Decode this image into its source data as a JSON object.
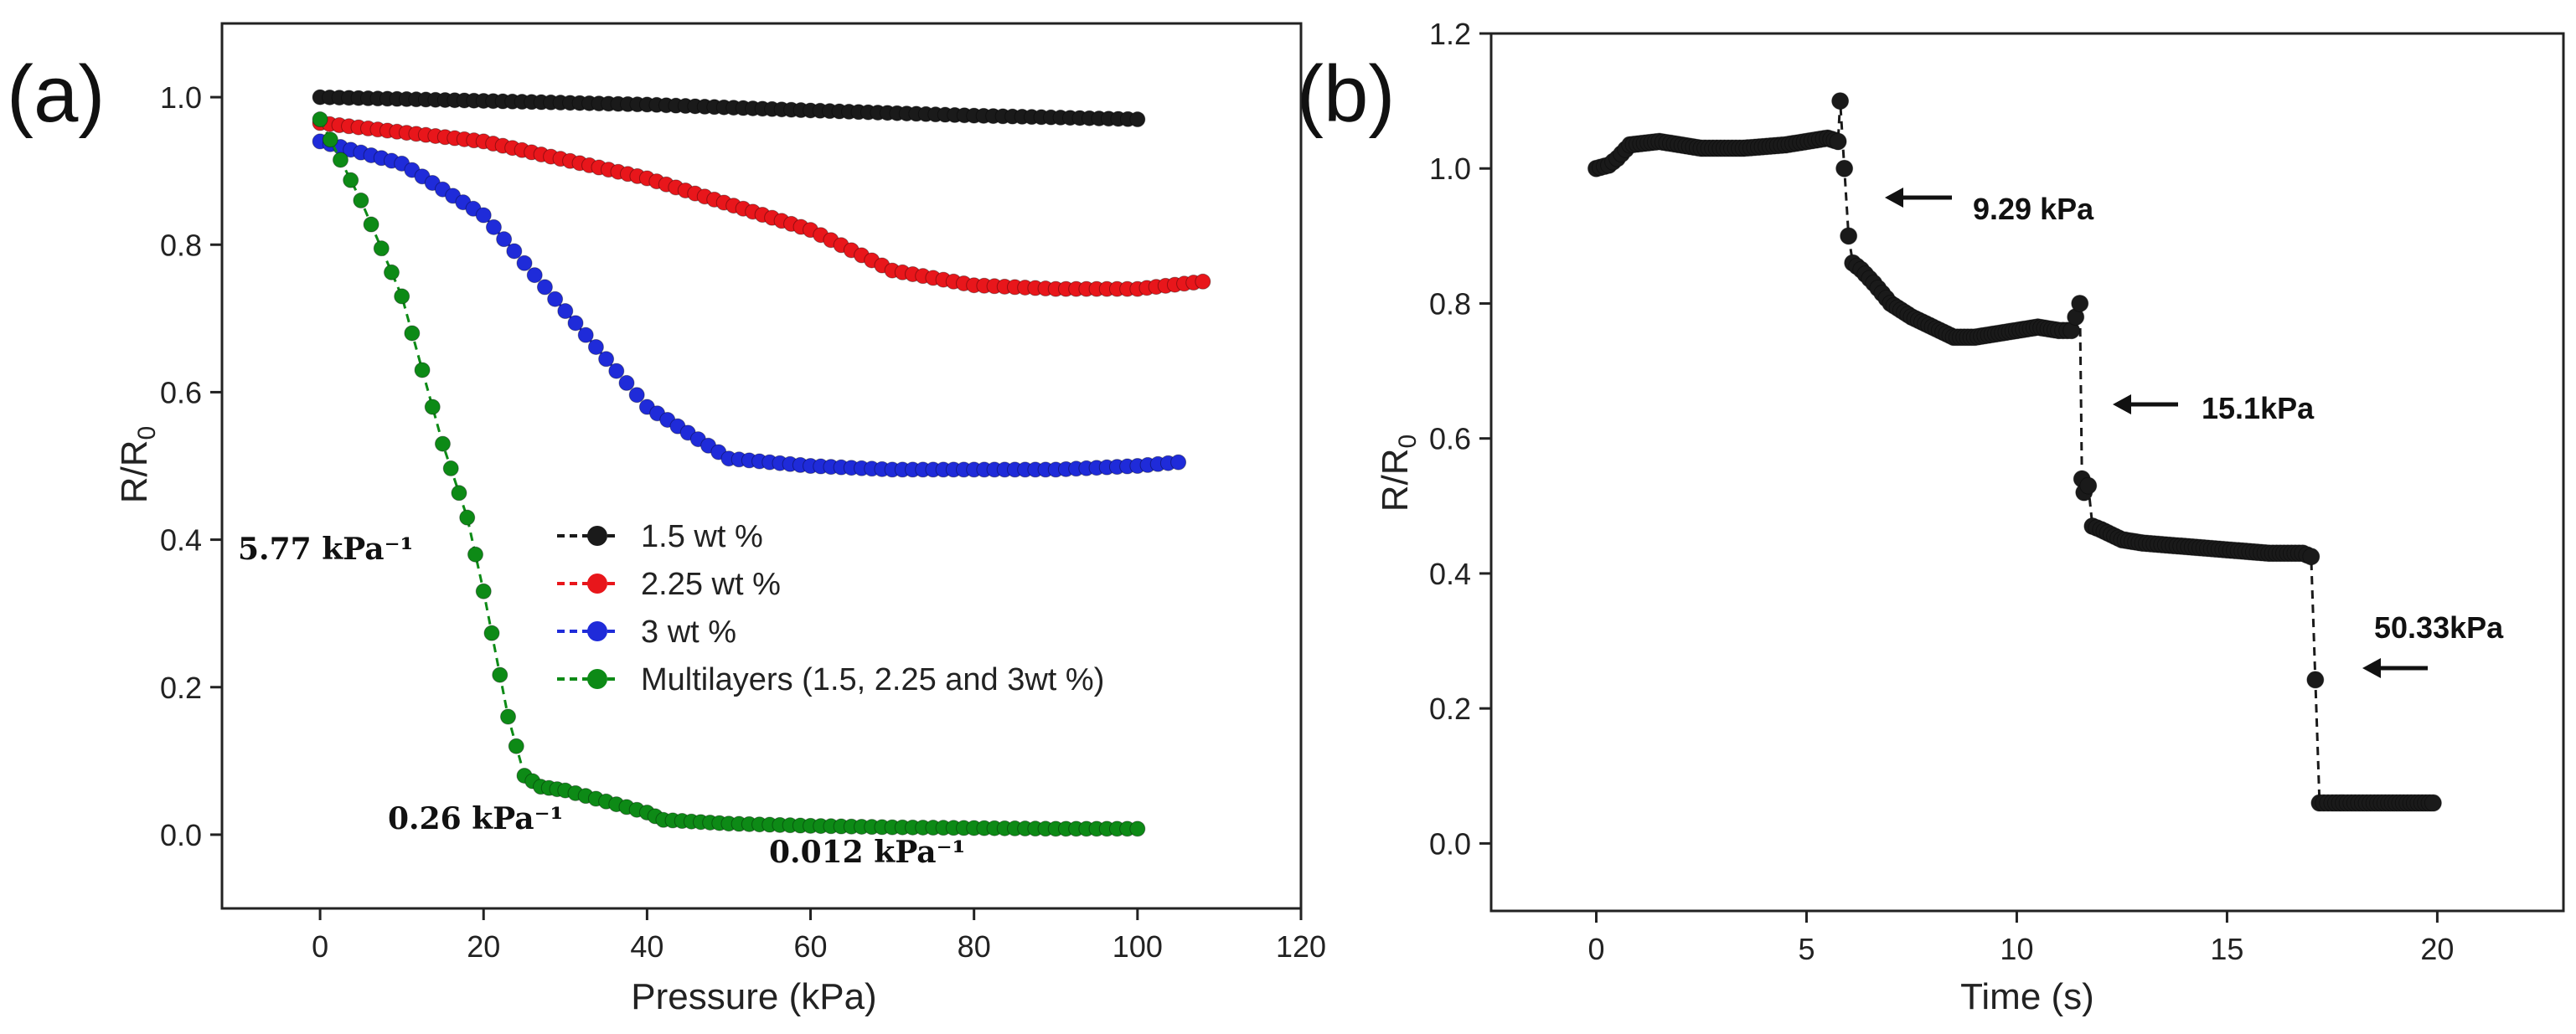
{
  "chart_data": [
    {
      "panel": "(a)",
      "type": "line",
      "xlabel": "Pressure (kPa)",
      "ylabel": "R/R0",
      "xlim": [
        -12,
        120
      ],
      "ylim": [
        -0.1,
        1.1
      ],
      "xticks": [
        "0",
        "20",
        "40",
        "60",
        "80",
        "100",
        "120"
      ],
      "yticks": [
        "0.0",
        "0.2",
        "0.4",
        "0.6",
        "0.8",
        "1.0"
      ],
      "legend_position": "center-right",
      "series": [
        {
          "name": "1.5 wt %",
          "color": "#1a1a1a",
          "x": [
            0,
            20,
            40,
            60,
            80,
            100
          ],
          "y": [
            1.0,
            0.995,
            0.99,
            0.982,
            0.975,
            0.97
          ]
        },
        {
          "name": "2.25 wt %",
          "color": "#e8161b",
          "x": [
            0,
            20,
            40,
            60,
            70,
            80,
            90,
            100,
            108
          ],
          "y": [
            0.965,
            0.94,
            0.89,
            0.82,
            0.765,
            0.745,
            0.74,
            0.74,
            0.75
          ]
        },
        {
          "name": "3 wt %",
          "color": "#1f2bd9",
          "x": [
            0,
            10,
            20,
            30,
            40,
            50,
            60,
            70,
            80,
            90,
            100,
            105
          ],
          "y": [
            0.94,
            0.91,
            0.84,
            0.71,
            0.58,
            0.51,
            0.5,
            0.495,
            0.495,
            0.495,
            0.5,
            0.505
          ]
        },
        {
          "name": "Multilayers (1.5, 2.25 and 3wt %)",
          "color": "#0d8a16",
          "x": [
            0,
            5,
            10,
            15,
            18,
            20,
            23,
            25,
            27,
            30,
            35,
            40,
            42,
            50,
            60,
            70,
            80,
            90,
            100
          ],
          "y": [
            0.97,
            0.86,
            0.73,
            0.53,
            0.43,
            0.33,
            0.16,
            0.08,
            0.065,
            0.06,
            0.045,
            0.03,
            0.02,
            0.015,
            0.012,
            0.01,
            0.009,
            0.008,
            0.008
          ]
        }
      ],
      "annotations": [
        {
          "text": "5.77 kPa⁻¹"
        },
        {
          "text": "0.26 kPa⁻¹"
        },
        {
          "text": "0.012 kPa⁻¹"
        }
      ]
    },
    {
      "panel": "(b)",
      "type": "line",
      "xlabel": "Time (s)",
      "ylabel": "R/R0",
      "xlim": [
        -2.5,
        23
      ],
      "ylim": [
        -0.1,
        1.2
      ],
      "xticks": [
        "0",
        "5",
        "10",
        "15",
        "20"
      ],
      "yticks": [
        "0.0",
        "0.2",
        "0.4",
        "0.6",
        "0.8",
        "1.0",
        "1.2"
      ],
      "series": [
        {
          "name": "R/R0",
          "color": "#1a1a1a",
          "x": [
            0,
            0.3,
            0.5,
            0.8,
            1.5,
            2.5,
            3.5,
            4.5,
            5.5,
            5.75,
            5.8,
            6.0,
            6.1,
            6.3,
            6.6,
            7.0,
            7.5,
            8.0,
            8.5,
            9.0,
            9.5,
            10.0,
            10.5,
            11.0,
            11.3,
            11.5,
            11.55,
            11.6,
            11.7,
            11.8,
            12.0,
            12.5,
            13.0,
            14.0,
            15.0,
            16.0,
            16.8,
            17.0,
            17.2,
            17.5,
            18.5,
            19.9
          ],
          "y": [
            1.0,
            1.005,
            1.015,
            1.035,
            1.04,
            1.03,
            1.03,
            1.035,
            1.045,
            1.04,
            1.1,
            0.9,
            0.86,
            0.85,
            0.83,
            0.8,
            0.78,
            0.765,
            0.75,
            0.75,
            0.755,
            0.76,
            0.765,
            0.76,
            0.76,
            0.8,
            0.54,
            0.52,
            0.53,
            0.47,
            0.465,
            0.45,
            0.445,
            0.44,
            0.435,
            0.43,
            0.43,
            0.425,
            0.06,
            0.06,
            0.06,
            0.06
          ]
        }
      ],
      "annotations": [
        {
          "text": "9.29 kPa"
        },
        {
          "text": "15.1kPa"
        },
        {
          "text": "50.33kPa"
        }
      ]
    }
  ]
}
